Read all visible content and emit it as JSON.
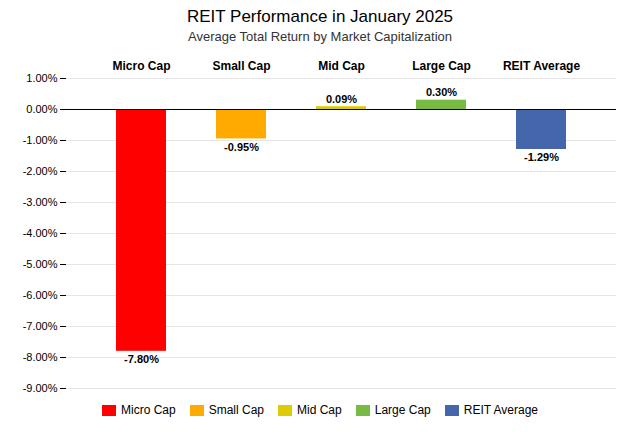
{
  "chart_data": {
    "type": "bar",
    "title": "REIT Performance in January 2025",
    "subtitle": "Average Total Return by Market Capitalization",
    "categories": [
      "Micro Cap",
      "Small Cap",
      "Mid Cap",
      "Large Cap",
      "REIT Average"
    ],
    "values": [
      -7.8,
      -0.95,
      0.09,
      0.3,
      -1.29
    ],
    "value_labels": [
      "-7.80%",
      "-0.95%",
      "0.09%",
      "0.30%",
      "-1.29%"
    ],
    "colors": [
      "#ff0000",
      "#ffaa00",
      "#ddcc00",
      "#77bb44",
      "#4466aa"
    ],
    "ylim": [
      -9.0,
      1.0
    ],
    "yticks": [
      {
        "value": -9.0,
        "label": "-9.00%"
      },
      {
        "value": -8.0,
        "label": "-8.00%"
      },
      {
        "value": -7.0,
        "label": "-7.00%"
      },
      {
        "value": -6.0,
        "label": "-6.00%"
      },
      {
        "value": -5.0,
        "label": "-5.00%"
      },
      {
        "value": -4.0,
        "label": "-4.00%"
      },
      {
        "value": -3.0,
        "label": "-3.00%"
      },
      {
        "value": -2.0,
        "label": "-2.00%"
      },
      {
        "value": -1.0,
        "label": "-1.00%"
      },
      {
        "value": 0.0,
        "label": "0.00%"
      },
      {
        "value": 1.0,
        "label": "1.00%"
      }
    ],
    "grid": true,
    "data_labels": true,
    "legend": "bottom"
  }
}
